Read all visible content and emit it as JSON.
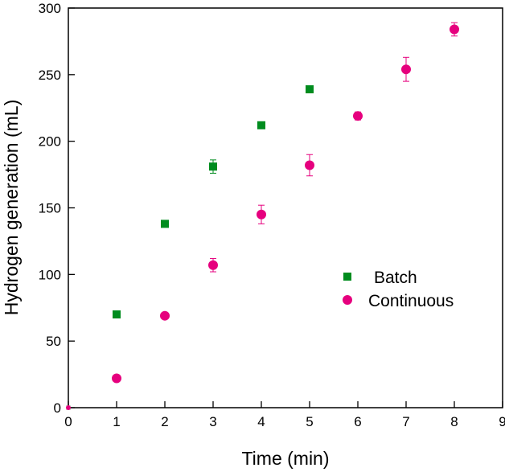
{
  "chart_data": {
    "type": "scatter",
    "xlabel": "Time (min)",
    "ylabel": "Hydrogen generation (mL)",
    "xlim": [
      0,
      9
    ],
    "ylim": [
      0,
      300
    ],
    "x_ticks": [
      "0",
      "1",
      "2",
      "3",
      "4",
      "5",
      "6",
      "7",
      "8",
      "9"
    ],
    "y_ticks": [
      "0",
      "50",
      "100",
      "150",
      "200",
      "250",
      "300"
    ],
    "grid": false,
    "legend_position": "center-right",
    "series": [
      {
        "name": "Batch",
        "marker": "square",
        "color": "#008c1e",
        "points": [
          {
            "x": 0,
            "y": 0,
            "err": 0
          },
          {
            "x": 1,
            "y": 70,
            "err": 0
          },
          {
            "x": 2,
            "y": 138,
            "err": 0
          },
          {
            "x": 3,
            "y": 181,
            "err": 5
          },
          {
            "x": 4,
            "y": 212,
            "err": 0
          },
          {
            "x": 5,
            "y": 239,
            "err": 0
          }
        ]
      },
      {
        "name": "Continuous",
        "marker": "circle",
        "color": "#e6007e",
        "points": [
          {
            "x": 0,
            "y": 0,
            "err": 0
          },
          {
            "x": 1,
            "y": 22,
            "err": 0
          },
          {
            "x": 2,
            "y": 69,
            "err": 0
          },
          {
            "x": 3,
            "y": 107,
            "err": 5
          },
          {
            "x": 4,
            "y": 145,
            "err": 7
          },
          {
            "x": 5,
            "y": 182,
            "err": 8
          },
          {
            "x": 6,
            "y": 219,
            "err": 3
          },
          {
            "x": 7,
            "y": 254,
            "err": 9
          },
          {
            "x": 8,
            "y": 284,
            "err": 5
          }
        ]
      }
    ]
  }
}
